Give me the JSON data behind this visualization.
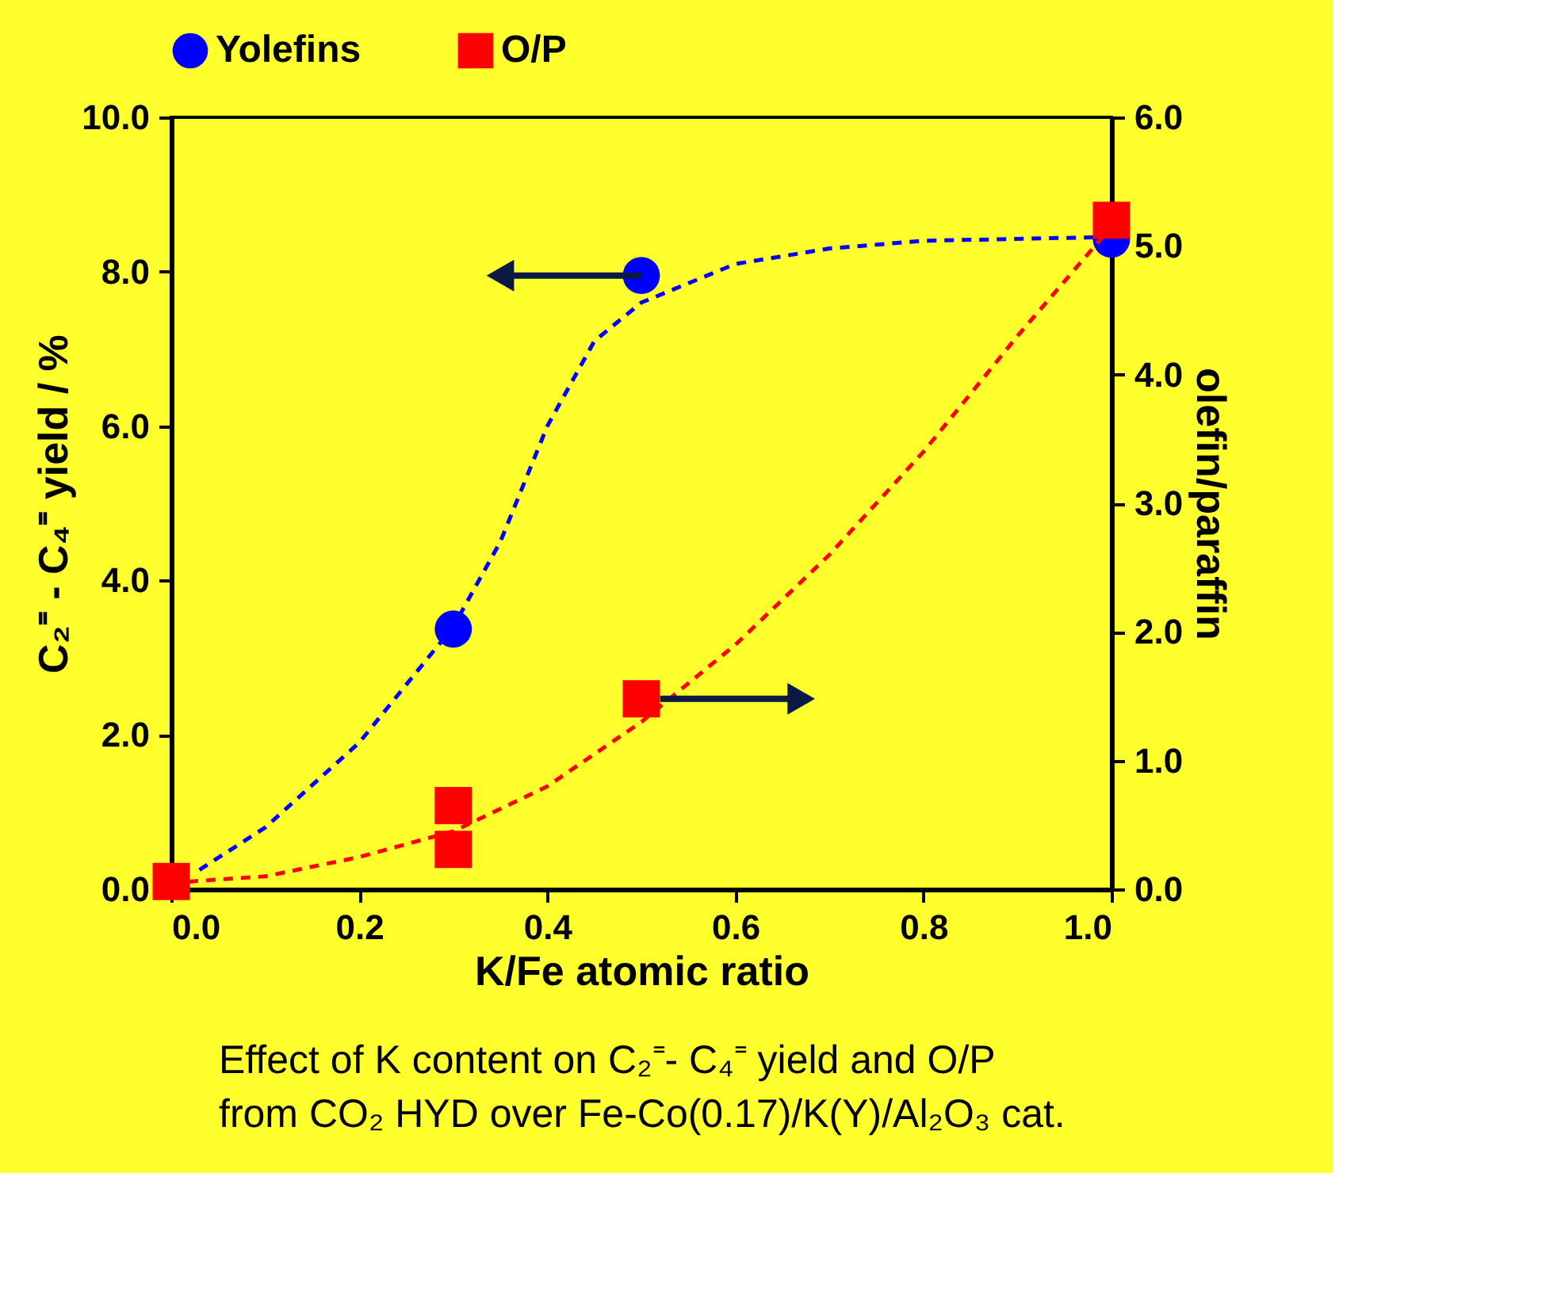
{
  "chart_data": {
    "type": "scatter",
    "xlabel": "K/Fe atomic ratio",
    "ylabel": "C₂⁼ - C₄⁼ yield / %",
    "y2label": "olefin/paraffin",
    "xlim": [
      0,
      1
    ],
    "xticks": [
      {
        "value": 0,
        "label": "0.0"
      },
      {
        "value": 0.2,
        "label": "0.2"
      },
      {
        "value": 0.4,
        "label": "0.4"
      },
      {
        "value": 0.6,
        "label": "0.6"
      },
      {
        "value": 0.8,
        "label": "0.8"
      },
      {
        "value": 1,
        "label": "1.0"
      }
    ],
    "ylim": [
      0,
      10
    ],
    "yticks": [
      {
        "value": 0,
        "label": "0.0"
      },
      {
        "value": 2,
        "label": "2.0"
      },
      {
        "value": 4,
        "label": "4.0"
      },
      {
        "value": 6,
        "label": "6.0"
      },
      {
        "value": 8,
        "label": "8.0"
      },
      {
        "value": 10,
        "label": "10.0"
      }
    ],
    "y2lim": [
      0,
      6
    ],
    "y2ticks": [
      {
        "value": 0,
        "label": "0.0"
      },
      {
        "value": 1,
        "label": "1.0"
      },
      {
        "value": 2,
        "label": "2.0"
      },
      {
        "value": 3,
        "label": "3.0"
      },
      {
        "value": 4,
        "label": "4.0"
      },
      {
        "value": 5,
        "label": "5.0"
      },
      {
        "value": 6,
        "label": "6.0"
      }
    ],
    "grid": false,
    "legend": "top",
    "series": [
      {
        "type": "line",
        "color": "#0000ff",
        "line_style": "dashed",
        "marker": "none",
        "x": [
          0.03,
          0.1,
          0.2,
          0.3,
          0.35,
          0.4,
          0.45,
          0.5,
          0.6,
          0.7,
          0.8,
          1.0
        ],
        "values": [
          0.25,
          0.8,
          1.9,
          3.4,
          4.5,
          6.0,
          7.1,
          7.6,
          8.1,
          8.3,
          8.4,
          8.45
        ]
      },
      {
        "type": "line",
        "axis": "y2",
        "color": "#ff0000",
        "line_style": "dashed",
        "marker": "none",
        "x": [
          0,
          0.1,
          0.2,
          0.3,
          0.4,
          0.5,
          0.6,
          0.7,
          0.8,
          0.9,
          1.0
        ],
        "values": [
          0.05,
          0.1,
          0.25,
          0.45,
          0.8,
          1.3,
          1.9,
          2.6,
          3.4,
          4.3,
          5.15
        ]
      },
      {
        "name": "Yolefins",
        "color": "#0000ff",
        "marker": "circle",
        "x": [
          0.3,
          0.5,
          1.0
        ],
        "values": [
          3.37,
          7.95,
          8.42
        ]
      },
      {
        "name": "O/P",
        "axis": "y2",
        "color": "#ff0000",
        "marker": "square",
        "x": [
          0,
          0.3,
          0.3,
          0.5,
          1.0
        ],
        "values": [
          0.06,
          0.31,
          0.65,
          1.48,
          5.2
        ]
      }
    ],
    "annotations": [
      "Effect of K content on C₂⁼- C₄⁼ yield and O/P",
      "from CO₂ HYD over Fe-Co(0.17)/K(Y)/Al₂O₃ cat."
    ]
  }
}
